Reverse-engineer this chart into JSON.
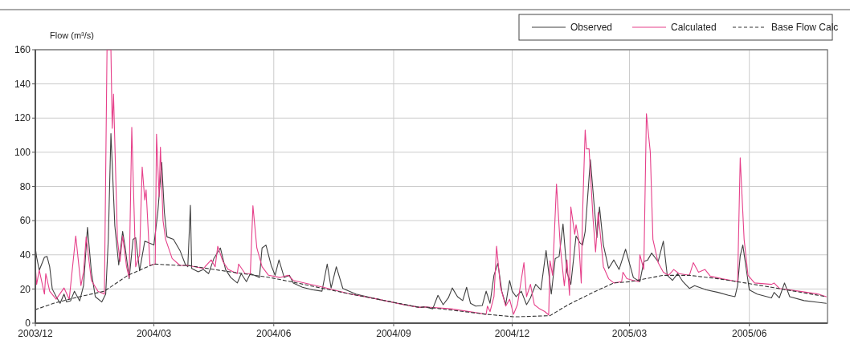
{
  "chart_data": {
    "type": "line",
    "ylabel": "Flow (m³/s)",
    "xlim": [
      "2003-12-01",
      "2005-07-31"
    ],
    "xticks": [
      {
        "value": "2003-12-01",
        "label": "2003/12"
      },
      {
        "value": "2004-03-01",
        "label": "2004/03"
      },
      {
        "value": "2004-06-01",
        "label": "2004/06"
      },
      {
        "value": "2004-09-01",
        "label": "2004/09"
      },
      {
        "value": "2004-12-01",
        "label": "2004/12"
      },
      {
        "value": "2005-03-01",
        "label": "2005/03"
      },
      {
        "value": "2005-06-01",
        "label": "2005/06"
      }
    ],
    "ylim": [
      0,
      160
    ],
    "yticks": [
      0,
      20,
      40,
      60,
      80,
      100,
      120,
      140,
      160
    ],
    "grid": true,
    "legend": "top right",
    "series": [
      {
        "name": "Observed",
        "color": "#404040",
        "line_style": "solid",
        "x": [
          "2003-12-01",
          "2003-12-02",
          "2003-12-04",
          "2003-12-08",
          "2003-12-10",
          "2003-12-12",
          "2003-12-14",
          "2003-12-17",
          "2003-12-20",
          "2003-12-23",
          "2003-12-25",
          "2003-12-28",
          "2003-12-31",
          "2004-01-04",
          "2004-01-07",
          "2004-01-10",
          "2004-01-13",
          "2004-01-16",
          "2004-01-21",
          "2004-01-24",
          "2004-01-26",
          "2004-01-28",
          "2004-01-31",
          "2004-02-03",
          "2004-02-06",
          "2004-02-08",
          "2004-02-11",
          "2004-02-14",
          "2004-02-16",
          "2004-02-19",
          "2004-02-23",
          "2004-02-26",
          "2004-03-01",
          "2004-03-04",
          "2004-03-07",
          "2004-03-09",
          "2004-03-11",
          "2004-03-16",
          "2004-03-21",
          "2004-03-25",
          "2004-03-27",
          "2004-03-29",
          "2004-03-30",
          "2004-04-04",
          "2004-04-08",
          "2004-04-12",
          "2004-04-16",
          "2004-04-21",
          "2004-04-25",
          "2004-04-29",
          "2004-05-04",
          "2004-05-07",
          "2004-05-11",
          "2004-05-14",
          "2004-05-17",
          "2004-05-21",
          "2004-05-23",
          "2004-05-26",
          "2004-05-30",
          "2004-06-02",
          "2004-06-05",
          "2004-06-09",
          "2004-06-13",
          "2004-06-16",
          "2004-06-23",
          "2004-07-01",
          "2004-07-08",
          "2004-07-12",
          "2004-07-15",
          "2004-07-19",
          "2004-07-24",
          "2004-08-03",
          "2004-08-20",
          "2004-09-09",
          "2004-09-21",
          "2004-09-25",
          "2004-10-01",
          "2004-10-05",
          "2004-10-09",
          "2004-10-13",
          "2004-10-16",
          "2004-10-20",
          "2004-10-24",
          "2004-10-27",
          "2004-10-30",
          "2004-11-03",
          "2004-11-08",
          "2004-11-11",
          "2004-11-14",
          "2004-11-17",
          "2004-11-20",
          "2004-11-23",
          "2004-11-26",
          "2004-11-29",
          "2004-12-01",
          "2004-12-04",
          "2004-12-08",
          "2004-12-12",
          "2004-12-15",
          "2004-12-19",
          "2004-12-23",
          "2004-12-27",
          "2004-12-31",
          "2005-01-03",
          "2005-01-06",
          "2005-01-09",
          "2005-01-12",
          "2005-01-15",
          "2005-01-19",
          "2005-01-22",
          "2005-01-24",
          "2005-01-26",
          "2005-01-30",
          "2005-02-02",
          "2005-02-04",
          "2005-02-06",
          "2005-02-09",
          "2005-02-13",
          "2005-02-17",
          "2005-02-21",
          "2005-02-26",
          "2005-03-04",
          "2005-03-09",
          "2005-03-12",
          "2005-03-15",
          "2005-03-18",
          "2005-03-23",
          "2005-03-27",
          "2005-03-30",
          "2005-04-03",
          "2005-04-07",
          "2005-04-11",
          "2005-04-16",
          "2005-04-20",
          "2005-04-29",
          "2005-05-08",
          "2005-05-16",
          "2005-05-21",
          "2005-05-23",
          "2005-05-25",
          "2005-05-27",
          "2005-05-30",
          "2005-06-01",
          "2005-06-07",
          "2005-06-18",
          "2005-06-20",
          "2005-06-24",
          "2005-06-28",
          "2005-07-02",
          "2005-07-13",
          "2005-07-30"
        ],
        "values": [
          44,
          38.6,
          31,
          38.6,
          39,
          33,
          20,
          15.5,
          11.6,
          17,
          12.4,
          13,
          18.7,
          13,
          22,
          56,
          30,
          15.5,
          12.4,
          17,
          49,
          111,
          57,
          34,
          53.7,
          44,
          26,
          49,
          50,
          30.6,
          48,
          47,
          45.7,
          65,
          94,
          65,
          50.5,
          49,
          42.5,
          34.6,
          33,
          69,
          32,
          30,
          31.4,
          29,
          37.8,
          44,
          31.4,
          26.7,
          23.5,
          29,
          24.3,
          29,
          28,
          26.7,
          44,
          45.7,
          33.8,
          28,
          37,
          26.7,
          28,
          23.5,
          21,
          19.5,
          18.7,
          34.6,
          20.6,
          33,
          20.3,
          17,
          14,
          10.8,
          9.2,
          9.5,
          8.4,
          16.3,
          10.8,
          14.8,
          20.6,
          15.5,
          13.2,
          21,
          11.6,
          10,
          10.3,
          18.7,
          11.6,
          28,
          35,
          18.7,
          10.8,
          25,
          18.7,
          15.5,
          18.7,
          10.8,
          14.8,
          22.7,
          19.5,
          42.5,
          17,
          37.8,
          39,
          58,
          29.8,
          22.7,
          51,
          47,
          45.7,
          53.7,
          95.7,
          68,
          50,
          68,
          45.7,
          32,
          37,
          31.4,
          43.3,
          26.7,
          24.3,
          36,
          37,
          41,
          36,
          48,
          28,
          25,
          29,
          24.3,
          20.3,
          21.9,
          19.5,
          18,
          16.3,
          15.5,
          22,
          39.4,
          45.7,
          29.8,
          19.5,
          17,
          14.8,
          18,
          14.8,
          23.5,
          15.5,
          13.2,
          11.6
        ]
      },
      {
        "name": "Calculated",
        "color": "#e6408a",
        "line_style": "solid",
        "x": [
          "2003-12-01",
          "2003-12-02",
          "2003-12-04",
          "2003-12-08",
          "2003-12-09",
          "2003-12-12",
          "2003-12-17",
          "2003-12-23",
          "2003-12-27",
          "2004-01-01",
          "2004-01-05",
          "2004-01-07",
          "2004-01-09",
          "2004-01-13",
          "2004-01-18",
          "2004-01-23",
          "2004-01-25",
          "2004-01-28",
          "2004-01-29",
          "2004-01-30",
          "2004-02-02",
          "2004-02-04",
          "2004-02-06",
          "2004-02-09",
          "2004-02-11",
          "2004-02-13",
          "2004-02-16",
          "2004-02-19",
          "2004-02-21",
          "2004-02-23",
          "2004-02-24",
          "2004-02-27",
          "2004-03-02",
          "2004-03-03",
          "2004-03-05",
          "2004-03-06",
          "2004-03-08",
          "2004-03-10",
          "2004-03-15",
          "2004-03-21",
          "2004-03-27",
          "2004-04-08",
          "2004-04-14",
          "2004-04-17",
          "2004-04-19",
          "2004-04-23",
          "2004-04-27",
          "2004-05-04",
          "2004-05-05",
          "2004-05-10",
          "2004-05-14",
          "2004-05-16",
          "2004-05-19",
          "2004-05-23",
          "2004-05-28",
          "2004-06-06",
          "2004-06-12",
          "2004-06-16",
          "2004-07-09",
          "2004-07-30",
          "2004-08-20",
          "2004-09-09",
          "2004-09-21",
          "2004-09-25",
          "2004-10-15",
          "2004-11-11",
          "2004-11-12",
          "2004-11-14",
          "2004-11-17",
          "2004-11-19",
          "2004-11-22",
          "2004-11-26",
          "2004-11-29",
          "2004-12-02",
          "2004-12-05",
          "2004-12-10",
          "2004-12-12",
          "2004-12-15",
          "2004-12-18",
          "2004-12-22",
          "2004-12-26",
          "2004-12-29",
          "2004-12-30",
          "2005-01-01",
          "2005-01-04",
          "2005-01-07",
          "2005-01-10",
          "2005-01-12",
          "2005-01-14",
          "2005-01-15",
          "2005-01-18",
          "2005-01-19",
          "2005-01-21",
          "2005-01-23",
          "2005-01-24",
          "2005-01-26",
          "2005-01-27",
          "2005-01-29",
          "2005-02-01",
          "2005-02-03",
          "2005-02-05",
          "2005-02-09",
          "2005-02-13",
          "2005-02-17",
          "2005-02-23",
          "2005-02-24",
          "2005-02-27",
          "2005-03-04",
          "2005-03-08",
          "2005-03-09",
          "2005-03-12",
          "2005-03-14",
          "2005-03-17",
          "2005-03-19",
          "2005-03-23",
          "2005-03-27",
          "2005-03-31",
          "2005-04-04",
          "2005-04-08",
          "2005-04-16",
          "2005-04-19",
          "2005-04-23",
          "2005-04-28",
          "2005-05-02",
          "2005-05-11",
          "2005-05-23",
          "2005-05-25",
          "2005-05-28",
          "2005-05-31",
          "2005-06-05",
          "2005-06-18",
          "2005-06-20",
          "2005-06-24",
          "2005-07-09",
          "2005-07-24",
          "2005-07-30"
        ],
        "values": [
          33,
          22.7,
          31,
          17,
          29,
          18.7,
          14,
          20.6,
          14,
          51,
          22,
          30,
          50.5,
          25,
          18.7,
          17,
          160,
          160,
          114,
          134,
          49,
          36,
          51,
          33,
          26.7,
          114.6,
          33,
          40,
          91.3,
          72,
          78,
          33.8,
          34.6,
          110.6,
          74,
          103,
          60,
          49,
          37.8,
          33.8,
          33.8,
          32,
          37,
          33,
          45,
          36,
          31.4,
          29,
          34.6,
          29,
          29,
          68.7,
          44,
          33,
          28,
          26.7,
          28,
          25,
          21,
          17,
          14,
          10.8,
          9.2,
          9.5,
          8.4,
          5.2,
          10,
          6.8,
          15.5,
          45,
          21,
          10,
          14,
          5.2,
          10.8,
          35.4,
          15.5,
          22.7,
          10.8,
          8.4,
          6.8,
          4.8,
          36.5,
          28,
          81.4,
          44,
          21.9,
          37,
          16.3,
          68,
          52,
          57.6,
          49,
          23.5,
          64,
          113,
          102,
          102,
          61.6,
          41.7,
          64.8,
          33,
          26,
          23.5,
          24.3,
          29.8,
          26,
          25,
          24.3,
          40,
          31.4,
          122.5,
          100,
          49,
          35.4,
          29.8,
          28,
          31.4,
          29,
          28,
          35.4,
          29.8,
          31.4,
          27.5,
          26,
          24.3,
          96.7,
          49,
          28,
          23.5,
          22.7,
          23.5,
          20.3,
          18.7,
          17,
          15.5
        ]
      },
      {
        "name": "Base Flow Calc",
        "color": "#333333",
        "line_style": "dashed",
        "x": [
          "2003-12-01",
          "2003-12-15",
          "2004-01-04",
          "2004-01-23",
          "2004-02-10",
          "2004-03-01",
          "2004-03-19",
          "2004-03-27",
          "2004-04-16",
          "2004-05-08",
          "2004-05-29",
          "2004-06-19",
          "2004-07-09",
          "2004-07-30",
          "2004-08-20",
          "2004-09-21",
          "2004-09-25",
          "2004-11-11",
          "2004-12-03",
          "2004-12-30",
          "2005-01-13",
          "2005-02-03",
          "2005-02-17",
          "2005-03-02",
          "2005-03-27",
          "2005-04-16",
          "2005-05-08",
          "2005-05-29",
          "2005-06-18",
          "2005-07-30"
        ],
        "values": [
          7.9,
          11.6,
          15.5,
          18.7,
          28,
          34.6,
          33.8,
          33.8,
          31.4,
          29,
          26.7,
          23.5,
          20.3,
          17,
          14,
          9.2,
          9.5,
          5.2,
          3.7,
          4.4,
          10.8,
          18.7,
          23.5,
          24.3,
          28,
          28,
          26,
          23.5,
          21,
          15.5
        ]
      }
    ]
  }
}
